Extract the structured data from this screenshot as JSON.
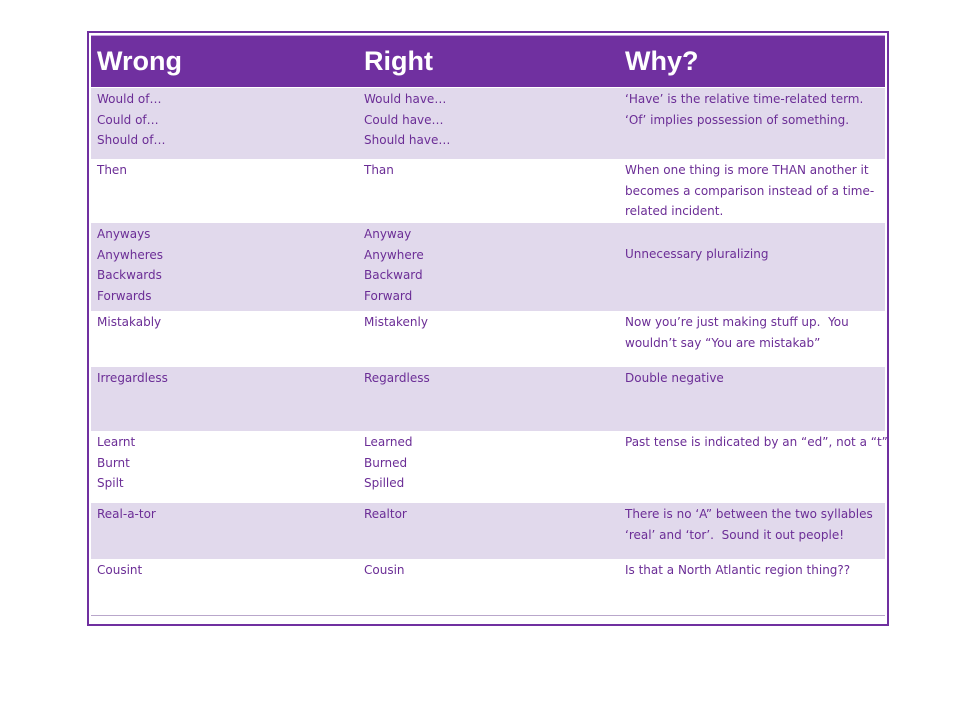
{
  "table": {
    "headers": {
      "wrong": "Wrong",
      "right": "Right",
      "why": "Why?"
    },
    "rows": [
      {
        "wrong": "Would of…\nCould of…\nShould of…",
        "right": "Would have…\nCould have…\nShould have…",
        "why": "‘Have’ is the relative time-related term.\n‘Of’ implies possession of something."
      },
      {
        "wrong": "Then",
        "right": "Than",
        "why": "When one thing is more THAN another it\nbecomes a comparison instead of a time-\nrelated incident."
      },
      {
        "wrong": "Anyways\nAnywheres\nBackwards\nForwards",
        "right": "Anyway\nAnywhere\nBackward\nForward",
        "why": "Unnecessary pluralizing"
      },
      {
        "wrong": "Mistakably",
        "right": "Mistakenly",
        "why": "Now you’re just making stuff up.  You\nwouldn’t say “You are mistakab”"
      },
      {
        "wrong": "Irregardless",
        "right": "Regardless",
        "why": "Double negative"
      },
      {
        "wrong": "Learnt\nBurnt\nSpilt",
        "right": "Learned\nBurned\nSpilled",
        "why": "Past tense is indicated by an “ed”, not a “t”"
      },
      {
        "wrong": "Real-a-tor",
        "right": "Realtor",
        "why": "There is no ‘A” between the two syllables\n‘real’ and ‘tor’.  Sound it out people!"
      },
      {
        "wrong": "Cousint",
        "right": "Cousin",
        "why": "Is that a North Atlantic region thing??"
      }
    ]
  },
  "colors": {
    "header_bg": "#7030A0",
    "header_text": "#FFFFFF",
    "shaded_row": "#E1D9EC",
    "body_text": "#6B2D96"
  }
}
